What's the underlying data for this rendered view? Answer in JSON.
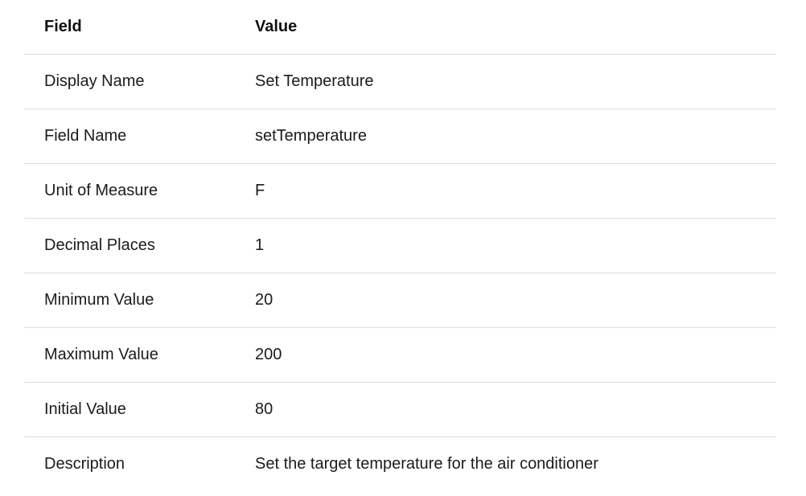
{
  "table": {
    "headers": {
      "field": "Field",
      "value": "Value"
    },
    "rows": [
      {
        "field": "Display Name",
        "value": "Set Temperature"
      },
      {
        "field": "Field Name",
        "value": "setTemperature"
      },
      {
        "field": "Unit of Measure",
        "value": "F"
      },
      {
        "field": "Decimal Places",
        "value": "1"
      },
      {
        "field": "Minimum Value",
        "value": "20"
      },
      {
        "field": "Maximum Value",
        "value": "200"
      },
      {
        "field": "Initial Value",
        "value": "80"
      },
      {
        "field": "Description",
        "value": "Set the target temperature for the air conditioner"
      }
    ]
  }
}
